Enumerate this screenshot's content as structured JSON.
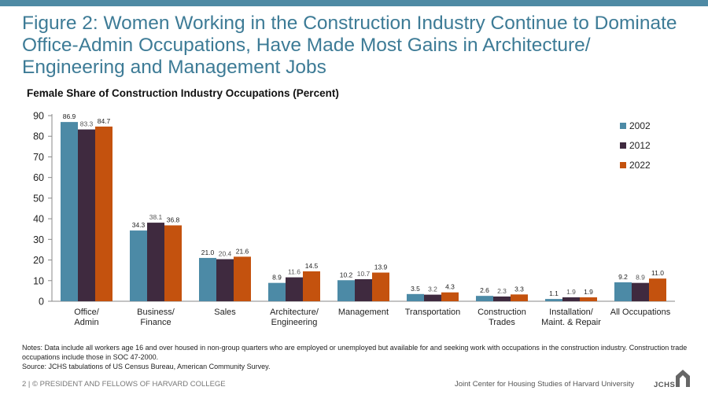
{
  "header": {
    "title": "Figure 2: Women Working in the Construction Industry Continue to Dominate Office-Admin Occupations, Have Made Most Gains in Architecture/ Engineering and Management Jobs"
  },
  "colors": {
    "accent_bar": "#4e8aa4",
    "series_2002": "#4c8aa6",
    "series_2012": "#3f2a3f",
    "series_2022": "#c4520e",
    "title": "#3d7b96"
  },
  "chart_data": {
    "type": "bar",
    "title": "Female Share of Construction Industry Occupations (Percent)",
    "xlabel": "",
    "ylabel": "",
    "ylim": [
      0,
      90
    ],
    "yticks": [
      0,
      10,
      20,
      30,
      40,
      50,
      60,
      70,
      80,
      90
    ],
    "grid": false,
    "legend_position": "top-right",
    "categories": [
      [
        "Office/",
        "Admin"
      ],
      [
        "Business/",
        "Finance"
      ],
      [
        "Sales"
      ],
      [
        "Architecture/",
        "Engineering"
      ],
      [
        "Management"
      ],
      [
        "Transportation"
      ],
      [
        "Construction",
        "Trades"
      ],
      [
        "Installation/",
        "Maint. & Repair"
      ],
      [
        "All Occupations"
      ]
    ],
    "series": [
      {
        "name": "2002",
        "color": "#4c8aa6",
        "values": [
          86.9,
          34.3,
          21.0,
          8.9,
          10.2,
          3.5,
          2.6,
          1.1,
          9.2
        ]
      },
      {
        "name": "2012",
        "color": "#3f2a3f",
        "values": [
          83.3,
          38.1,
          20.4,
          11.6,
          10.7,
          3.2,
          2.3,
          1.9,
          8.9
        ]
      },
      {
        "name": "2022",
        "color": "#c4520e",
        "values": [
          84.7,
          36.8,
          21.6,
          14.5,
          13.9,
          4.3,
          3.3,
          1.9,
          11.0
        ]
      }
    ]
  },
  "notes": {
    "line1": "Notes: Data include all workers age 16 and over housed in non-group quarters who are employed or unemployed but available for and seeking work with occupations in the construction industry. Construction trade occupations include those in SOC 47-2000.",
    "line2": "Source: JCHS tabulations of US Census Bureau, American Community Survey."
  },
  "footer": {
    "left": "2 | © PRESIDENT AND FELLOWS OF HARVARD COLLEGE",
    "right": "Joint Center for Housing Studies of Harvard University",
    "logo_text": "JCHS"
  }
}
